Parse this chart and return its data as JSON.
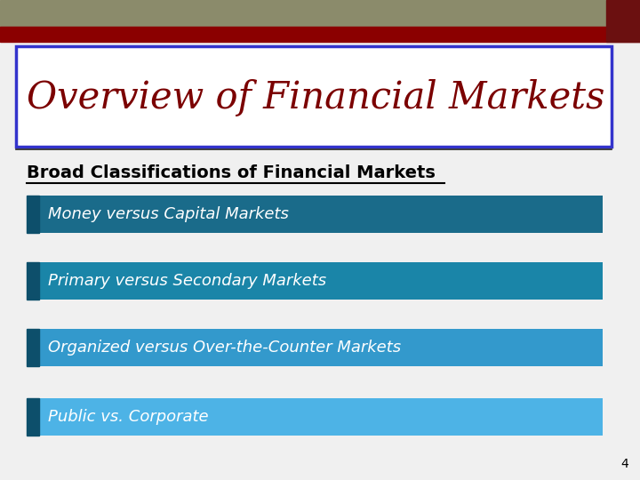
{
  "bg_color": "#f0f0f0",
  "title_text": "Overview of Financial Markets",
  "title_color": "#7b0000",
  "title_box_bg": "#ffffff",
  "title_box_border": "#3333cc",
  "header_bar_top_color": "#8b8b6b",
  "header_bar_bottom_color": "#8b0000",
  "accent_box_color": "#6b1010",
  "subtitle_text": "Broad Classifications of Financial Markets",
  "subtitle_color": "#000000",
  "bullet_items": [
    "Money versus Capital Markets",
    "Primary versus Secondary Markets",
    "Organized versus Over-the-Counter Markets",
    "Public vs. Corporate"
  ],
  "bullet_colors": [
    "#1a6b8a",
    "#1a85a8",
    "#3399cc",
    "#4db3e6"
  ],
  "bullet_left_strip_color": "#0d4f6b",
  "bullet_text_color": "#ffffff",
  "page_number": "4",
  "page_number_color": "#000000"
}
